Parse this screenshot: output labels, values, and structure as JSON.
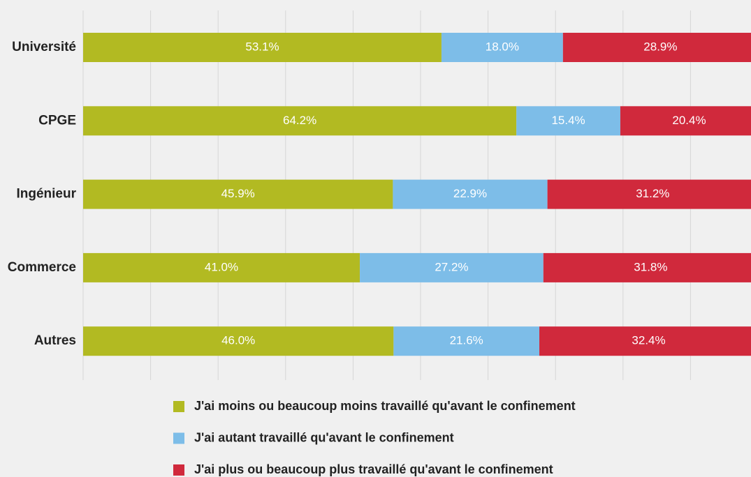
{
  "chart_data": {
    "type": "stacked_barh",
    "categories": [
      "Université",
      "CPGE",
      "Ingénieur",
      "Commerce",
      "Autres"
    ],
    "series": [
      {
        "name": "J'ai moins ou beaucoup moins travaillé qu'avant le confinement",
        "color": "#b2ba22",
        "values": [
          53.1,
          64.2,
          45.9,
          41.0,
          46.0
        ],
        "value_labels": [
          "53.1%",
          "64.2%",
          "45.9%",
          "41.0%",
          "46.0%"
        ]
      },
      {
        "name": "J'ai autant travaillé qu'avant le confinement",
        "color": "#7dbde8",
        "values": [
          18.0,
          15.4,
          22.9,
          27.2,
          21.6
        ],
        "value_labels": [
          "18.0%",
          "15.4%",
          "22.9%",
          "27.2%",
          "21.6%"
        ]
      },
      {
        "name": "J'ai plus ou beaucoup plus travaillé qu'avant le confinement",
        "color": "#d0293c",
        "values": [
          28.9,
          20.4,
          31.2,
          31.8,
          32.4
        ],
        "value_labels": [
          "28.9%",
          "20.4%",
          "31.2%",
          "31.8%",
          "32.4%"
        ]
      }
    ],
    "xlim": [
      0,
      100
    ],
    "xticks": [
      0,
      10,
      20,
      30,
      40,
      50,
      60,
      70,
      80,
      90,
      100
    ],
    "grid": true,
    "legend": "bottom"
  }
}
